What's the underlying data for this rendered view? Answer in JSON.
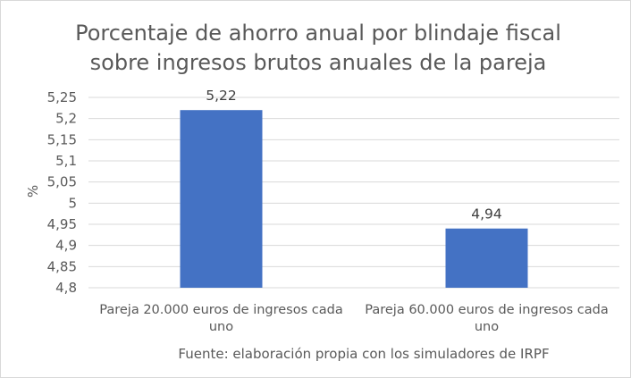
{
  "chart_data": {
    "type": "bar",
    "title_lines": [
      "Porcentaje de ahorro anual por blindaje fiscal",
      "sobre ingresos brutos anuales de la pareja"
    ],
    "ylabel": "%",
    "xlabel": "",
    "categories": [
      [
        "Pareja 20.000 euros de ingresos cada",
        "uno"
      ],
      [
        "Pareja 60.000 euros de ingresos cada",
        "uno"
      ]
    ],
    "values": [
      5.22,
      4.94
    ],
    "data_labels": [
      "5,22",
      "4,94"
    ],
    "ylim": [
      4.8,
      5.25
    ],
    "yticks": [
      4.8,
      4.85,
      4.9,
      4.95,
      5,
      5.05,
      5.1,
      5.15,
      5.2,
      5.25
    ],
    "ytick_labels": [
      "4,8",
      "4,85",
      "4,9",
      "4,95",
      "5",
      "5,05",
      "5,1",
      "5,15",
      "5,2",
      "5,25"
    ],
    "grid": true,
    "legend": false,
    "source": "Fuente: elaboración propia con los simuladores de IRPF",
    "colors": {
      "bar": "#4472c4",
      "grid": "#d9d9d9",
      "text": "#595959",
      "label": "#404040"
    }
  }
}
